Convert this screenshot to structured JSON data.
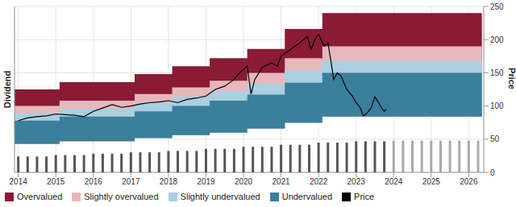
{
  "chart_data": {
    "type": "line",
    "y_label": "Price",
    "y2_label": "Dividend",
    "xlim": [
      2013.9,
      2026.4
    ],
    "xticks": [
      2014,
      2015,
      2016,
      2017,
      2018,
      2019,
      2020,
      2021,
      2022,
      2023,
      2024,
      2025,
      2026
    ],
    "ylim": [
      0,
      250
    ],
    "yticks": [
      0,
      50,
      100,
      150,
      200,
      250
    ],
    "y2lim": [
      0,
      12
    ],
    "grid": true,
    "legend": "bottom",
    "series": [
      {
        "name": "Overvalued",
        "type": "area",
        "color": "#8b1a35",
        "x": [
          2013.9,
          2015.1,
          2016.1,
          2017.1,
          2018.1,
          2019.1,
          2020.1,
          2021.1,
          2022.1,
          2023.1,
          2026.35
        ],
        "values": [
          125,
          136,
          136,
          148,
          160,
          172,
          186,
          216,
          240,
          240,
          240
        ]
      },
      {
        "name": "Slightly overvalued",
        "type": "area",
        "color": "#e6b8bc",
        "x": [
          2013.9,
          2015.1,
          2016.1,
          2017.1,
          2018.1,
          2019.1,
          2020.1,
          2021.1,
          2022.1,
          2023.1,
          2026.35
        ],
        "values": [
          100,
          108,
          108,
          118,
          128,
          138,
          150,
          172,
          190,
          190,
          190
        ]
      },
      {
        "name": "Slightly undervalued",
        "type": "area",
        "color": "#a9cfe0",
        "x": [
          2013.9,
          2015.1,
          2016.1,
          2017.1,
          2018.1,
          2019.1,
          2020.1,
          2021.1,
          2022.1,
          2023.1,
          2026.35
        ],
        "values": [
          89,
          96,
          96,
          105,
          114,
          123,
          133,
          154,
          168,
          168,
          168
        ]
      },
      {
        "name": "Undervalued",
        "type": "area",
        "color": "#3a7f9b",
        "x": [
          2013.9,
          2015.1,
          2016.1,
          2017.1,
          2018.1,
          2019.1,
          2020.1,
          2021.1,
          2022.1,
          2023.1,
          2026.35
        ],
        "values": [
          78,
          84,
          84,
          92,
          100,
          108,
          117,
          135,
          150,
          150,
          150
        ],
        "lower": [
          43,
          47,
          47,
          52,
          56,
          60,
          66,
          75,
          84,
          84,
          84
        ]
      },
      {
        "name": "Price",
        "type": "line",
        "color": "#000000",
        "x": [
          2014.0,
          2014.25,
          2014.5,
          2014.75,
          2015.0,
          2015.25,
          2015.5,
          2015.75,
          2016.0,
          2016.25,
          2016.5,
          2016.75,
          2017.0,
          2017.25,
          2017.5,
          2017.75,
          2018.0,
          2018.25,
          2018.5,
          2018.75,
          2019.0,
          2019.25,
          2019.5,
          2019.75,
          2019.9,
          2020.1,
          2020.2,
          2020.3,
          2020.5,
          2020.75,
          2020.9,
          2021.0,
          2021.25,
          2021.5,
          2021.7,
          2021.8,
          2021.9,
          2022.0,
          2022.15,
          2022.25,
          2022.35,
          2022.4,
          2022.5,
          2022.6,
          2022.75,
          2022.9,
          2023.0,
          2023.1,
          2023.2,
          2023.3,
          2023.4,
          2023.5,
          2023.6,
          2023.7,
          2023.75,
          2023.8
        ],
        "values": [
          78,
          82,
          84,
          85,
          88,
          87,
          86,
          84,
          92,
          97,
          102,
          98,
          100,
          103,
          105,
          106,
          108,
          105,
          110,
          112,
          115,
          125,
          130,
          140,
          150,
          160,
          118,
          140,
          158,
          165,
          160,
          175,
          185,
          195,
          205,
          185,
          200,
          208,
          190,
          195,
          160,
          140,
          150,
          145,
          125,
          115,
          105,
          98,
          85,
          90,
          97,
          114,
          105,
          95,
          92,
          95
        ]
      },
      {
        "type": "bar",
        "axis": "y2",
        "x": [
          2014.0,
          2014.25,
          2014.5,
          2014.75,
          2015.0,
          2015.25,
          2015.5,
          2015.75,
          2016.0,
          2016.25,
          2016.5,
          2016.75,
          2017.0,
          2017.25,
          2017.5,
          2017.75,
          2018.0,
          2018.25,
          2018.5,
          2018.75,
          2019.0,
          2019.25,
          2019.5,
          2019.75,
          2020.0,
          2020.25,
          2020.5,
          2020.75,
          2021.0,
          2021.25,
          2021.5,
          2021.75,
          2022.0,
          2022.25,
          2022.5,
          2022.75,
          2023.0,
          2023.25,
          2023.5,
          2023.75,
          2024.0,
          2024.25,
          2024.5,
          2024.75,
          2025.0,
          2025.25,
          2025.5,
          2025.75,
          2026.0,
          2026.25
        ],
        "values": [
          1.15,
          1.15,
          1.15,
          1.15,
          1.25,
          1.25,
          1.25,
          1.25,
          1.35,
          1.35,
          1.35,
          1.35,
          1.45,
          1.45,
          1.45,
          1.45,
          1.55,
          1.55,
          1.55,
          1.55,
          1.7,
          1.7,
          1.7,
          1.7,
          1.85,
          1.85,
          1.85,
          1.85,
          2.0,
          2.0,
          2.0,
          2.0,
          2.15,
          2.15,
          2.15,
          2.15,
          2.25,
          2.25,
          2.25,
          2.25,
          2.3,
          2.3,
          2.3,
          2.3,
          2.3,
          2.3,
          2.3,
          2.3,
          2.3,
          2.3
        ],
        "colors": [
          "#555555",
          "#555555",
          "#555555",
          "#555555",
          "#555555",
          "#555555",
          "#555555",
          "#555555",
          "#555555",
          "#555555",
          "#555555",
          "#555555",
          "#555555",
          "#555555",
          "#555555",
          "#555555",
          "#555555",
          "#555555",
          "#555555",
          "#555555",
          "#555555",
          "#555555",
          "#555555",
          "#555555",
          "#555555",
          "#555555",
          "#555555",
          "#555555",
          "#555555",
          "#555555",
          "#555555",
          "#555555",
          "#555555",
          "#555555",
          "#555555",
          "#555555",
          "#555555",
          "#555555",
          "#555555",
          "#555555",
          "#aaaaaa",
          "#aaaaaa",
          "#aaaaaa",
          "#aaaaaa",
          "#aaaaaa",
          "#aaaaaa",
          "#aaaaaa",
          "#aaaaaa",
          "#aaaaaa",
          "#aaaaaa"
        ]
      }
    ]
  }
}
